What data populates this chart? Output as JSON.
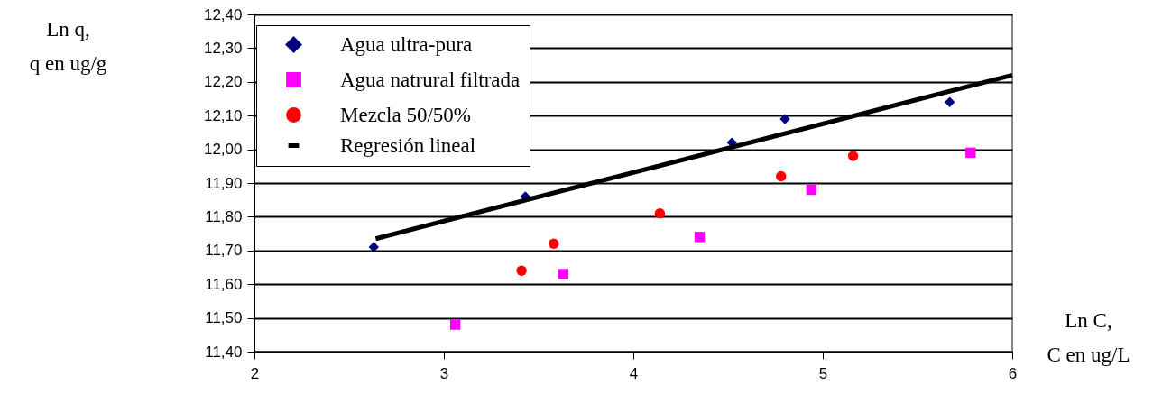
{
  "chart_data": {
    "type": "scatter",
    "xlabel": "Ln C,\nC en ug/L",
    "ylabel": "Ln q,\nq en ug/g",
    "series": [
      {
        "name": "Agua ultra-pura",
        "color": "#000080",
        "marker": "diamond",
        "x": [
          2.63,
          3.43,
          4.52,
          4.8,
          5.67
        ],
        "values": [
          11.71,
          11.86,
          12.02,
          12.09,
          12.14
        ]
      },
      {
        "name": "Agua natrural filtrada",
        "color": "#ff00ff",
        "marker": "square",
        "x": [
          3.06,
          3.63,
          4.35,
          4.94,
          5.78
        ],
        "values": [
          11.48,
          11.63,
          11.74,
          11.88,
          11.99
        ]
      },
      {
        "name": "Mezcla 50/50%",
        "color": "#ff0000",
        "marker": "circle",
        "x": [
          3.41,
          3.58,
          4.14,
          4.78,
          5.16
        ],
        "values": [
          11.64,
          11.72,
          11.81,
          11.92,
          11.98
        ]
      },
      {
        "name": "Regresión lineal",
        "color": "#000000",
        "type": "line",
        "x": [
          2.64,
          6
        ],
        "values": [
          11.735,
          12.22
        ]
      }
    ],
    "xlim": [
      2,
      6
    ],
    "xticks": [
      2,
      3,
      4,
      5,
      6
    ],
    "ylim": [
      11.4,
      12.4
    ],
    "yticks": [
      {
        "value": 11.4,
        "label": "11,40"
      },
      {
        "value": 11.5,
        "label": "11,50"
      },
      {
        "value": 11.6,
        "label": "11,60"
      },
      {
        "value": 11.7,
        "label": "11,70"
      },
      {
        "value": 11.8,
        "label": "11,80"
      },
      {
        "value": 11.9,
        "label": "11,90"
      },
      {
        "value": 12.0,
        "label": "12,00"
      },
      {
        "value": 12.1,
        "label": "12,10"
      },
      {
        "value": 12.2,
        "label": "12,20"
      },
      {
        "value": 12.3,
        "label": "12,30"
      },
      {
        "value": 12.4,
        "label": "12,40"
      }
    ],
    "grid": "y",
    "legend": "top left"
  }
}
